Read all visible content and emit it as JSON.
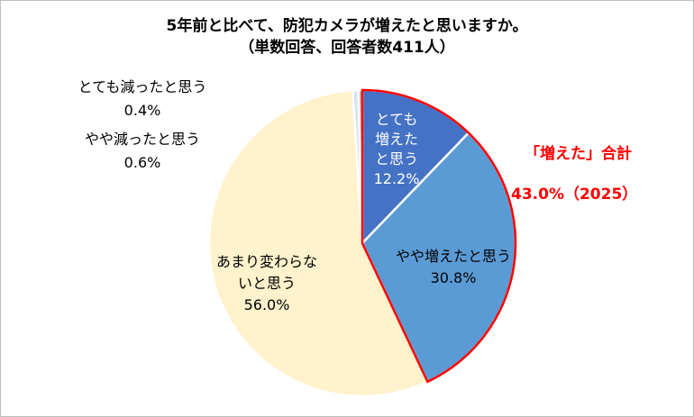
{
  "chart_data": {
    "type": "pie",
    "title": "5年前と比べて、防犯カメラが増えたと思いますか。",
    "subtitle": "（単数回答、回答者数411人）",
    "slices": [
      {
        "label_lines": [
          "とても",
          "増えた",
          "と思う"
        ],
        "value": 12.2,
        "value_text": "12.2%",
        "color": "#4472c4"
      },
      {
        "label_lines": [
          "やや増えたと思う"
        ],
        "value": 30.8,
        "value_text": "30.8%",
        "color": "#5b9bd5"
      },
      {
        "label_lines": [
          "あまり変わらな",
          "いと思う"
        ],
        "value": 56.0,
        "value_text": "56.0%",
        "color": "#fff2cc"
      },
      {
        "label_lines": [
          "やや減ったと思う"
        ],
        "value": 0.6,
        "value_text": "0.6%",
        "color": "#dae3f3"
      },
      {
        "label_lines": [
          "とても減ったと思う"
        ],
        "value": 0.4,
        "value_text": "0.4%",
        "color": "#a5a5a5"
      }
    ],
    "callout": {
      "label": "「増えた」合計",
      "value_text": "43.0%（2025）",
      "color": "#ff0000"
    }
  }
}
